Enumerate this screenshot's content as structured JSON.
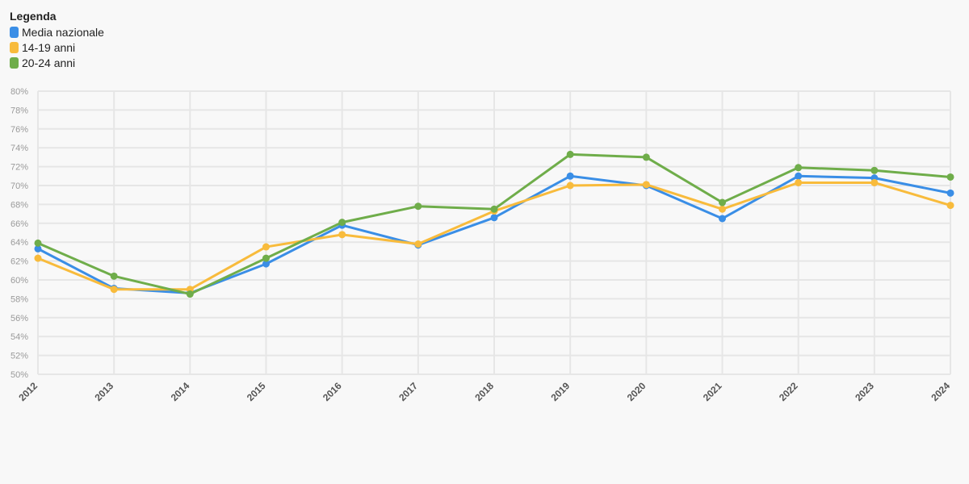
{
  "legend": {
    "title": "Legenda"
  },
  "chart_data": {
    "type": "line",
    "title": "",
    "xlabel": "",
    "ylabel": "",
    "x": [
      "2012",
      "2013",
      "2014",
      "2015",
      "2016",
      "2017",
      "2018",
      "2019",
      "2020",
      "2021",
      "2022",
      "2023",
      "2024"
    ],
    "ylim": [
      50,
      80
    ],
    "y_tick_step": 2,
    "y_unit": "%",
    "grid": true,
    "legend_position": "top-left",
    "series": [
      {
        "name": "Media nazionale",
        "color": "#3a8ee6",
        "values": [
          63.3,
          59.1,
          58.6,
          61.7,
          65.8,
          63.7,
          66.6,
          71.0,
          70.0,
          66.5,
          71.0,
          70.8,
          69.2
        ]
      },
      {
        "name": "14-19 anni",
        "color": "#f8bb3c",
        "values": [
          62.3,
          59.0,
          59.0,
          63.5,
          64.8,
          63.8,
          67.3,
          70.0,
          70.1,
          67.5,
          70.3,
          70.3,
          67.9
        ]
      },
      {
        "name": "20-24 anni",
        "color": "#6fad4a",
        "values": [
          63.9,
          60.4,
          58.5,
          62.3,
          66.1,
          67.8,
          67.5,
          73.3,
          73.0,
          68.2,
          71.9,
          71.6,
          70.9
        ]
      }
    ]
  }
}
